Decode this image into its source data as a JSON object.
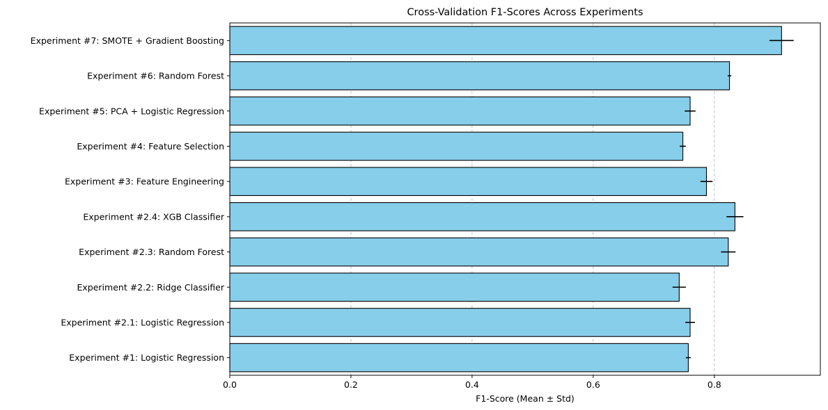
{
  "chart_data": {
    "type": "bar",
    "orientation": "horizontal",
    "title": "Cross-Validation F1-Scores Across Experiments",
    "xlabel": "F1-Score (Mean ± Std)",
    "ylabel": "",
    "xlim": [
      0,
      0.975
    ],
    "xticks": [
      0.0,
      0.2,
      0.4,
      0.6,
      0.8
    ],
    "xtick_labels": [
      "0.0",
      "0.2",
      "0.4",
      "0.6",
      "0.8"
    ],
    "grid": {
      "x": true,
      "y": false,
      "style": "dashed"
    },
    "bar_color": "#87CEEB",
    "edge_color": "#000000",
    "categories": [
      "Experiment #1: Logistic Regression",
      "Experiment #2.1: Logistic Regression",
      "Experiment #2.2: Ridge Classifier",
      "Experiment #2.3: Random Forest",
      "Experiment #2.4: XGB Classifier",
      "Experiment #3: Feature Engineering",
      "Experiment #4: Feature Selection",
      "Experiment #5: PCA + Logistic Regression",
      "Experiment #6: Random Forest",
      "Experiment #7: SMOTE + Gradient Boosting"
    ],
    "values": [
      0.757,
      0.76,
      0.742,
      0.823,
      0.834,
      0.787,
      0.748,
      0.76,
      0.825,
      0.911
    ],
    "errors": [
      0.004,
      0.008,
      0.011,
      0.012,
      0.014,
      0.01,
      0.005,
      0.009,
      0.003,
      0.02
    ]
  }
}
